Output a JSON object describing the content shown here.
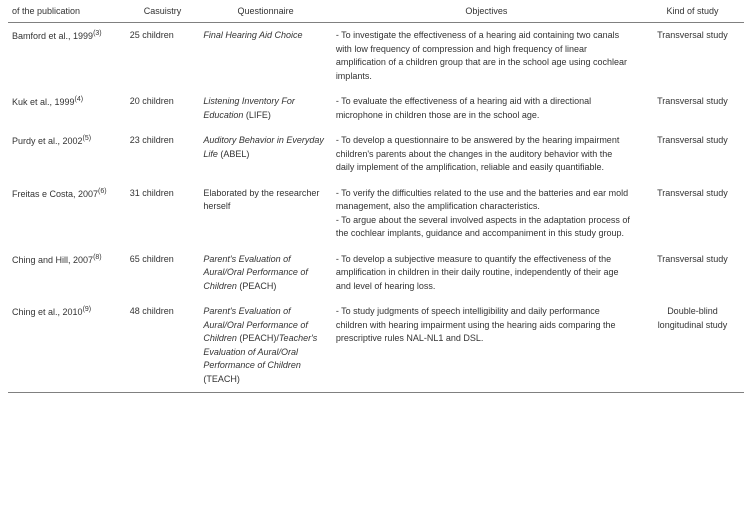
{
  "columns": {
    "publication": "of the publication",
    "casuistry": "Casuistry",
    "questionnaire": "Questionnaire",
    "objectives": "Objectives",
    "kind": "Kind of study"
  },
  "rows": [
    {
      "pub_author": "Bamford et al., 1999",
      "pub_ref": "(3)",
      "casuistry": "25 children",
      "quest_italic": "Final Hearing Aid Choice",
      "quest_plain": "",
      "objectives": "- To investigate the effectiveness of a hearing aid containing two canals with low frequency of compression and high frequency of linear amplification of a children group that are in the school age using cochlear implants.",
      "kind": "Transversal study"
    },
    {
      "pub_author": "Kuk et al., 1999",
      "pub_ref": "(4)",
      "casuistry": "20 children",
      "quest_italic": "Listening Inventory For Education",
      "quest_plain": " (LIFE)",
      "objectives": "- To evaluate the effectiveness of a hearing aid with a directional microphone in children those are in the school age.",
      "kind": "Transversal study"
    },
    {
      "pub_author": "Purdy et al., 2002",
      "pub_ref": "(5)",
      "casuistry": "23 children",
      "quest_italic": "Auditory Behavior in Everyday Life",
      "quest_plain": " (ABEL)",
      "objectives": "- To develop a questionnaire to be answered by the hearing impairment children's parents about the changes in the auditory behavior with the daily implement of the amplification, reliable and easily quantifiable.",
      "kind": "Transversal study"
    },
    {
      "pub_author": "Freitas e Costa, 2007",
      "pub_ref": "(6)",
      "casuistry": "31 children",
      "quest_italic": "",
      "quest_plain": "Elaborated by the researcher herself",
      "objectives": "- To verify the difficulties related to the use and the batteries and ear mold management, also the amplification characteristics.\n- To argue about the several involved aspects in the adaptation process of the cochlear implants, guidance and accompaniment in this study group.",
      "kind": "Transversal study"
    },
    {
      "pub_author": "Ching and Hill, 2007",
      "pub_ref": "(8)",
      "casuistry": "65 children",
      "quest_italic": "Parent's Evaluation of Aural/Oral Performance of Children ",
      "quest_plain": " (PEACH)",
      "objectives": "- To develop a subjective measure to quantify the effectiveness of the amplification in children in their daily routine, independently of their age and level of hearing loss.",
      "kind": "Transversal study"
    },
    {
      "pub_author": "Ching et al., 2010",
      "pub_ref": "(9)",
      "casuistry": "48 children",
      "quest_italic": "Parent's Evaluation of Aural/Oral Performance of Children",
      "quest_plain": " (PEACH)/",
      "quest_italic2": "Teacher's Evaluation of Aural/Oral Performance of Children",
      "quest_plain2": " (TEACH)",
      "objectives": "- To study judgments of speech intelligibility and daily performance children with hearing impairment using the hearing aids comparing the prescriptive rules NAL-NL1 and DSL.",
      "kind": "Double-blind longitudinal study"
    }
  ]
}
